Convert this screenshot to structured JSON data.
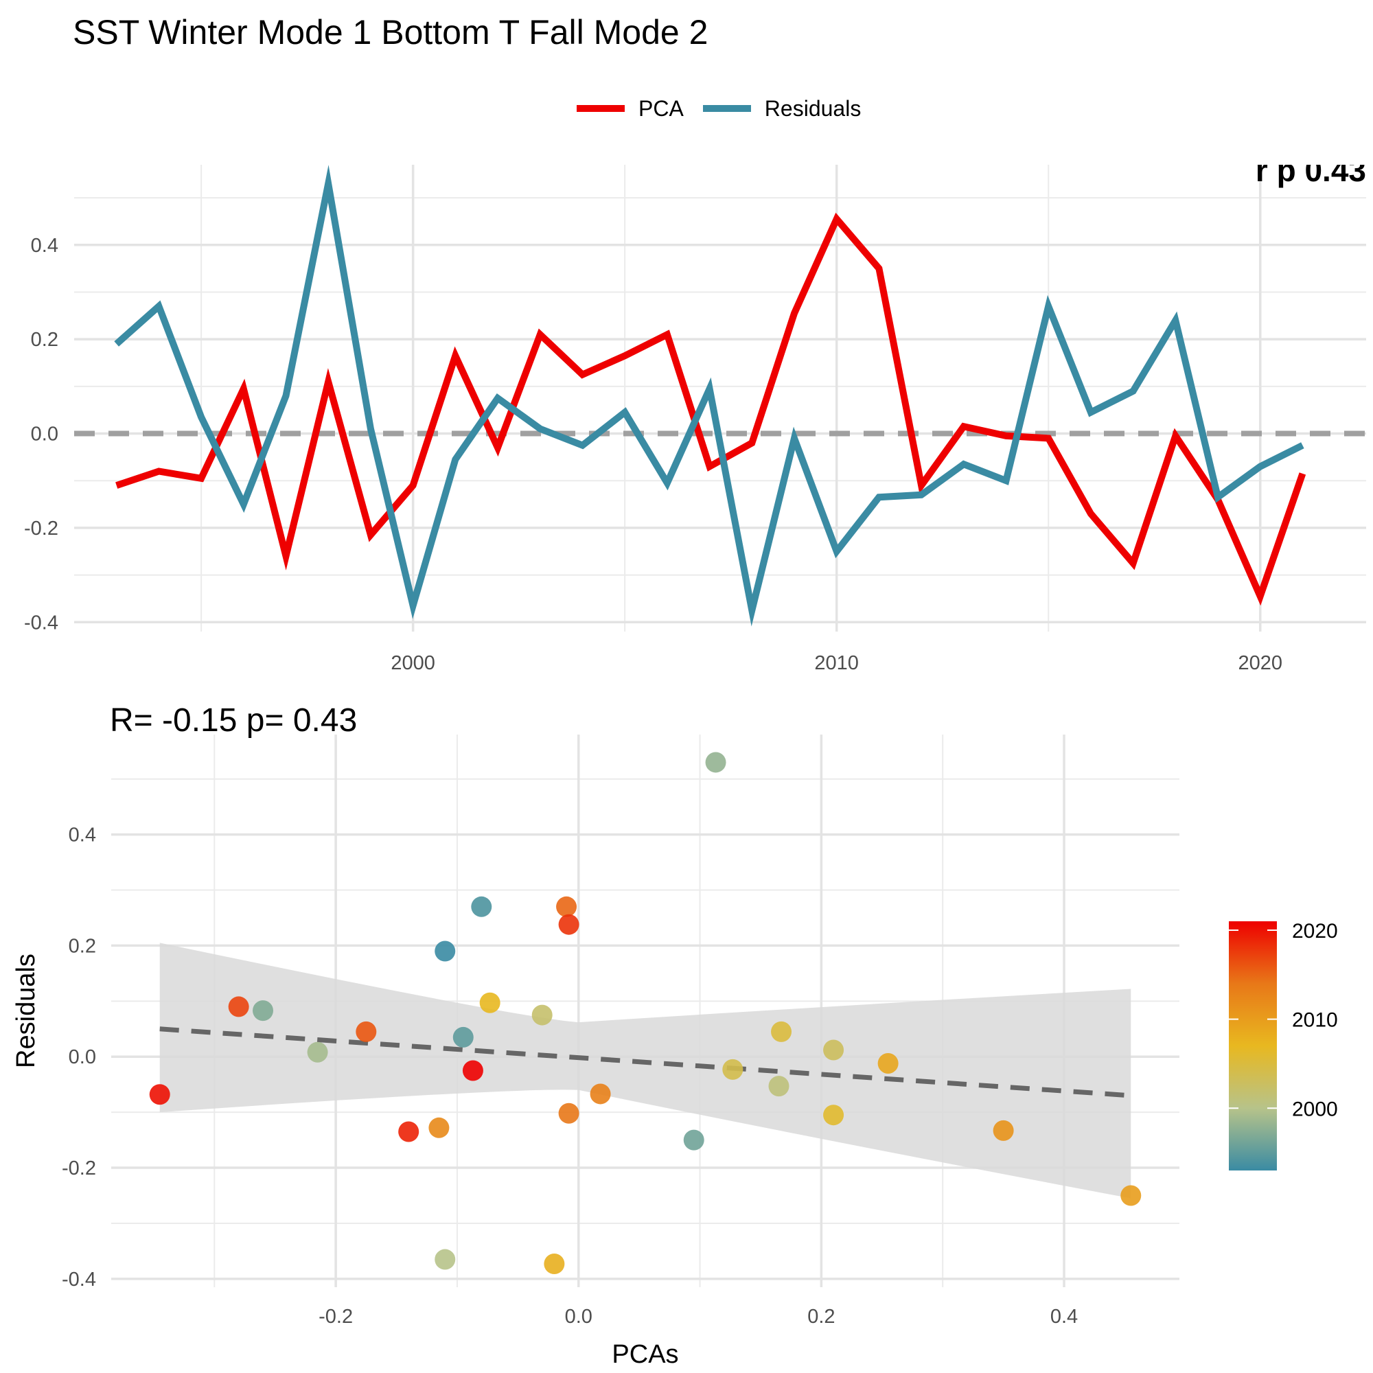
{
  "title": "SST Winter Mode 1 Bottom T Fall Mode 2",
  "legend": {
    "items": [
      {
        "label": "PCA",
        "color": "#ee0000"
      },
      {
        "label": "Residuals",
        "color": "#3a8ba3"
      }
    ]
  },
  "chart_data": [
    {
      "type": "line",
      "xlim": [
        1992,
        2022.5
      ],
      "ylim": [
        -0.42,
        0.57
      ],
      "x_ticks": [
        2000,
        2010,
        2020
      ],
      "y_ticks": [
        -0.4,
        -0.2,
        0.0,
        0.2,
        0.4
      ],
      "y_tick_labels": [
        "-0.4",
        "-0.2",
        "0.0",
        "0.2",
        "0.4"
      ],
      "x": [
        1993,
        1994,
        1995,
        1996,
        1997,
        1998,
        1999,
        2000,
        2001,
        2002,
        2003,
        2004,
        2005,
        2006,
        2007,
        2008,
        2009,
        2010,
        2011,
        2012,
        2013,
        2014,
        2015,
        2016,
        2017,
        2018,
        2019,
        2020,
        2021
      ],
      "series": [
        {
          "name": "PCA",
          "color": "#ee0000",
          "values": [
            -0.11,
            -0.08,
            -0.095,
            0.095,
            -0.26,
            0.11,
            -0.215,
            -0.11,
            0.165,
            -0.03,
            0.21,
            0.125,
            0.165,
            0.21,
            -0.07,
            -0.02,
            0.255,
            0.455,
            0.35,
            -0.11,
            0.015,
            -0.005,
            -0.01,
            -0.17,
            -0.275,
            -0.005,
            -0.14,
            -0.345,
            -0.085
          ]
        },
        {
          "name": "Residuals",
          "color": "#3a8ba3",
          "values": [
            0.19,
            0.27,
            0.035,
            -0.15,
            0.08,
            0.53,
            0.01,
            -0.365,
            -0.055,
            0.075,
            0.01,
            -0.025,
            0.045,
            -0.105,
            0.095,
            -0.375,
            -0.01,
            -0.25,
            -0.135,
            -0.13,
            -0.065,
            -0.1,
            0.27,
            0.045,
            0.09,
            0.24,
            -0.135,
            -0.07,
            -0.025
          ]
        }
      ],
      "reference_line": {
        "y": 0.0,
        "style": "dashed",
        "color": "#a0a0a0"
      },
      "corner_label": "r p 0.43",
      "grid": true
    },
    {
      "type": "scatter",
      "title": "R= -0.15  p= 0.43",
      "xlabel": "PCAs",
      "ylabel": "Residuals",
      "xlim": [
        -0.385,
        0.495
      ],
      "ylim": [
        -0.415,
        0.58
      ],
      "x_ticks": [
        -0.2,
        0.0,
        0.2,
        0.4
      ],
      "x_tick_labels": [
        "-0.2",
        "0.0",
        "0.2",
        "0.4"
      ],
      "y_ticks": [
        -0.4,
        -0.2,
        0.0,
        0.2,
        0.4
      ],
      "y_tick_labels": [
        "-0.4",
        "-0.2",
        "0.0",
        "0.2",
        "0.4"
      ],
      "points": [
        {
          "x": -0.11,
          "y": 0.19,
          "year": 1993
        },
        {
          "x": -0.08,
          "y": 0.27,
          "year": 1994
        },
        {
          "x": -0.095,
          "y": 0.035,
          "year": 1995
        },
        {
          "x": 0.095,
          "y": -0.15,
          "year": 1996
        },
        {
          "x": -0.26,
          "y": 0.083,
          "year": 1997
        },
        {
          "x": 0.113,
          "y": 0.53,
          "year": 1998
        },
        {
          "x": -0.215,
          "y": 0.008,
          "year": 1999
        },
        {
          "x": -0.11,
          "y": -0.365,
          "year": 2000
        },
        {
          "x": 0.165,
          "y": -0.053,
          "year": 2001
        },
        {
          "x": -0.03,
          "y": 0.075,
          "year": 2002
        },
        {
          "x": 0.21,
          "y": 0.012,
          "year": 2003
        },
        {
          "x": 0.127,
          "y": -0.023,
          "year": 2004
        },
        {
          "x": 0.167,
          "y": 0.045,
          "year": 2005
        },
        {
          "x": 0.21,
          "y": -0.105,
          "year": 2006
        },
        {
          "x": -0.073,
          "y": 0.097,
          "year": 2007
        },
        {
          "x": -0.02,
          "y": -0.373,
          "year": 2008
        },
        {
          "x": 0.255,
          "y": -0.012,
          "year": 2009
        },
        {
          "x": 0.455,
          "y": -0.25,
          "year": 2010
        },
        {
          "x": 0.35,
          "y": -0.133,
          "year": 2011
        },
        {
          "x": -0.115,
          "y": -0.128,
          "year": 2012
        },
        {
          "x": 0.018,
          "y": -0.067,
          "year": 2013
        },
        {
          "x": -0.008,
          "y": -0.102,
          "year": 2014
        },
        {
          "x": -0.01,
          "y": 0.27,
          "year": 2015
        },
        {
          "x": -0.175,
          "y": 0.045,
          "year": 2016
        },
        {
          "x": -0.28,
          "y": 0.09,
          "year": 2017
        },
        {
          "x": -0.008,
          "y": 0.238,
          "year": 2018
        },
        {
          "x": -0.14,
          "y": -0.135,
          "year": 2019
        },
        {
          "x": -0.345,
          "y": -0.068,
          "year": 2020
        },
        {
          "x": -0.087,
          "y": -0.025,
          "year": 2021
        }
      ],
      "fit": {
        "x_start": -0.345,
        "y_start": 0.05,
        "x_end": 0.455,
        "y_end": -0.07,
        "ci_lower_start": -0.1,
        "ci_upper_start": 0.205,
        "ci_lower_end": -0.255,
        "ci_upper_end": 0.122,
        "style": "dashed",
        "color": "#666666",
        "ci_color": "#d9d9d9"
      },
      "colorbar": {
        "ticks": [
          2000,
          2010,
          2020
        ],
        "range": [
          1993,
          2021
        ],
        "colors": [
          "#3a8ba3",
          "#b7c38a",
          "#e8b820",
          "#e87818",
          "#ee0000"
        ]
      },
      "grid": true
    }
  ]
}
